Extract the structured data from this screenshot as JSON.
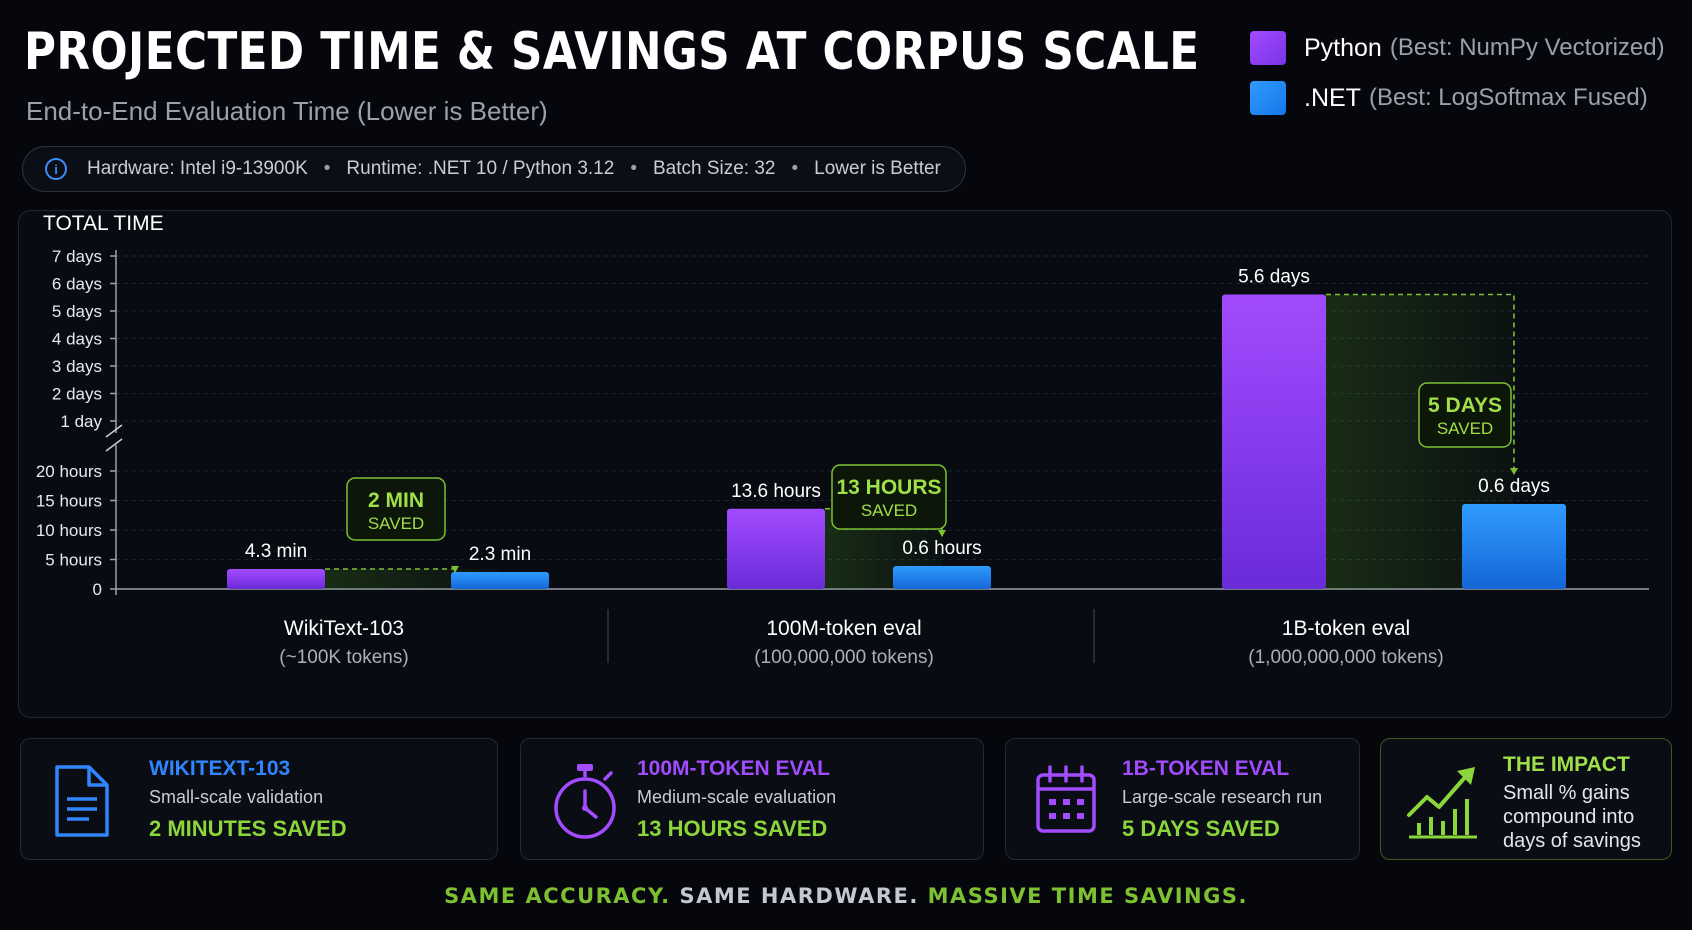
{
  "header": {
    "title": "PROJECTED TIME & SAVINGS AT CORPUS SCALE",
    "subtitle": "End-to-End Evaluation Time (Lower is Better)"
  },
  "legend": [
    {
      "name": "Python",
      "detail": "(Best: NumPy Vectorized)",
      "color": "#8a3df5"
    },
    {
      "name": ".NET",
      "detail": "(Best: LogSoftmax Fused)",
      "color": "#1d8cff"
    }
  ],
  "info_bar": {
    "items": [
      "Hardware: Intel i9-13900K",
      "Runtime: .NET 10 / Python 3.12",
      "Batch Size: 32",
      "Lower is Better"
    ],
    "separator": "•",
    "icon": "info-icon",
    "icon_glyph": "i"
  },
  "chart_data": {
    "type": "bar",
    "ylabel": "TOTAL TIME",
    "y_axis": {
      "scale": "broken",
      "lower_segment": {
        "unit": "hours",
        "range": [
          0,
          20
        ],
        "ticks": [
          "0",
          "5 hours",
          "10 hours",
          "15 hours",
          "20 hours"
        ]
      },
      "upper_segment": {
        "unit": "days",
        "range": [
          1,
          7
        ],
        "ticks": [
          "1 day",
          "2 days",
          "3 days",
          "4 days",
          "5 days",
          "6 days",
          "7 days"
        ]
      }
    },
    "grid": true,
    "legend_position": "top-right",
    "categories": [
      {
        "name": "WikiText-103",
        "sub": "(~100K tokens)"
      },
      {
        "name": "100M-token eval",
        "sub": "(100,000,000 tokens)"
      },
      {
        "name": "1B-token eval",
        "sub": "(1,000,000,000 tokens)"
      }
    ],
    "series": [
      {
        "name": "Python",
        "color": "#8a3df5",
        "labels": [
          "4.3 min",
          "13.6 hours",
          "5.6 days"
        ],
        "values_hours": [
          0.072,
          13.6,
          134.4
        ]
      },
      {
        "name": ".NET",
        "color": "#1d8cff",
        "labels": [
          "2.3 min",
          "0.6 hours",
          "0.6 days"
        ],
        "values_hours": [
          0.038,
          0.6,
          14.4
        ]
      }
    ],
    "savings": [
      {
        "line1": "2 MIN",
        "line2": "SAVED"
      },
      {
        "line1": "13 HOURS",
        "line2": "SAVED"
      },
      {
        "line1": "5 DAYS",
        "line2": "SAVED"
      }
    ]
  },
  "cards": [
    {
      "title": "WIKITEXT-103",
      "desc": "Small-scale validation",
      "saved": "2 MINUTES SAVED",
      "icon": "document-icon",
      "color": "#2f86ff"
    },
    {
      "title": "100M-TOKEN EVAL",
      "desc": "Medium-scale evaluation",
      "saved": "13 HOURS SAVED",
      "icon": "stopwatch-icon",
      "color": "#a24bff"
    },
    {
      "title": "1B-TOKEN EVAL",
      "desc": "Large-scale research run",
      "saved": "5 DAYS SAVED",
      "icon": "calendar-icon",
      "color": "#a24bff"
    },
    {
      "title": "THE IMPACT",
      "desc": "Small % gains compound into days of savings",
      "icon": "growth-chart-icon",
      "color": "#8bd63a"
    }
  ],
  "footer": {
    "part1": "SAME ACCURACY.",
    "part2": "SAME HARDWARE.",
    "part3": "MASSIVE TIME SAVINGS."
  }
}
